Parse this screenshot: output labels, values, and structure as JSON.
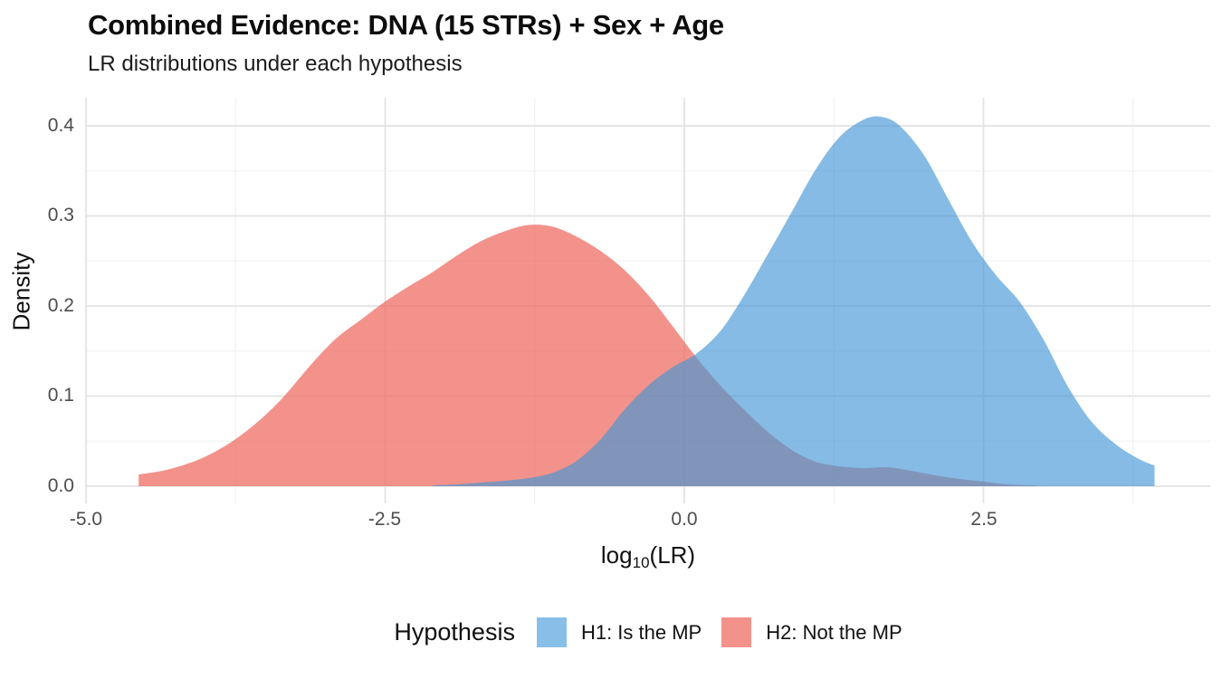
{
  "header": {
    "title": "Combined Evidence: DNA (15 STRs) + Sex + Age",
    "subtitle": "LR distributions under each hypothesis"
  },
  "axes": {
    "x": {
      "title_prefix": "log",
      "title_sub": "10",
      "title_suffix": "(LR)",
      "ticks": [
        {
          "v": -5.0,
          "label": "-5.0"
        },
        {
          "v": -2.5,
          "label": "-2.5"
        },
        {
          "v": 0.0,
          "label": "0.0"
        },
        {
          "v": 2.5,
          "label": "2.5"
        }
      ],
      "minor": [
        -3.75,
        -1.25,
        1.25,
        3.75
      ]
    },
    "y": {
      "title": "Density",
      "ticks": [
        {
          "v": 0.0,
          "label": "0.0"
        },
        {
          "v": 0.1,
          "label": "0.1"
        },
        {
          "v": 0.2,
          "label": "0.2"
        },
        {
          "v": 0.3,
          "label": "0.3"
        },
        {
          "v": 0.4,
          "label": "0.4"
        }
      ],
      "minor": [
        0.05,
        0.15,
        0.25,
        0.35
      ]
    }
  },
  "legend": {
    "title": "Hypothesis",
    "items": [
      {
        "label": "H1: Is the MP",
        "color": "#88BFE8"
      },
      {
        "label": "H2: Not the MP",
        "color": "#F2928B"
      }
    ]
  },
  "colors": {
    "h1_fill": "rgba(68,151,214,0.65)",
    "h2_fill": "rgba(238,110,100,0.75)",
    "grid_major": "#e3e3e3",
    "grid_minor": "#f0f0f0",
    "tick_text": "#4d4d4d",
    "text": "#111111"
  },
  "chart_data": {
    "type": "area",
    "title": "Combined Evidence: DNA (15 STRs) + Sex + Age",
    "subtitle": "LR distributions under each hypothesis",
    "xlabel": "log10(LR)",
    "ylabel": "Density",
    "xlim": [
      -5.05,
      4.4
    ],
    "ylim": [
      0,
      0.43
    ],
    "x_ticks": [
      -5.0,
      -2.5,
      0.0,
      2.5
    ],
    "y_ticks": [
      0.0,
      0.1,
      0.2,
      0.3,
      0.4
    ],
    "grid": true,
    "legend_position": "bottom",
    "legend_title": "Hypothesis",
    "series": [
      {
        "name": "H1: Is the MP",
        "color": "#88BFE8",
        "points": [
          [
            -2.1,
            0.001
          ],
          [
            -1.9,
            0.002
          ],
          [
            -1.7,
            0.004
          ],
          [
            -1.5,
            0.006
          ],
          [
            -1.3,
            0.009
          ],
          [
            -1.1,
            0.015
          ],
          [
            -0.9,
            0.028
          ],
          [
            -0.7,
            0.052
          ],
          [
            -0.5,
            0.085
          ],
          [
            -0.3,
            0.112
          ],
          [
            -0.1,
            0.132
          ],
          [
            0.1,
            0.147
          ],
          [
            0.3,
            0.172
          ],
          [
            0.5,
            0.212
          ],
          [
            0.7,
            0.258
          ],
          [
            0.9,
            0.305
          ],
          [
            1.1,
            0.352
          ],
          [
            1.3,
            0.388
          ],
          [
            1.5,
            0.407
          ],
          [
            1.65,
            0.41
          ],
          [
            1.8,
            0.4
          ],
          [
            2.0,
            0.368
          ],
          [
            2.2,
            0.32
          ],
          [
            2.4,
            0.272
          ],
          [
            2.6,
            0.235
          ],
          [
            2.8,
            0.205
          ],
          [
            3.0,
            0.163
          ],
          [
            3.2,
            0.112
          ],
          [
            3.4,
            0.072
          ],
          [
            3.6,
            0.047
          ],
          [
            3.8,
            0.03
          ],
          [
            3.93,
            0.023
          ]
        ]
      },
      {
        "name": "H2: Not the MP",
        "color": "#F2928B",
        "points": [
          [
            -4.56,
            0.013
          ],
          [
            -4.3,
            0.019
          ],
          [
            -4.0,
            0.033
          ],
          [
            -3.7,
            0.057
          ],
          [
            -3.4,
            0.092
          ],
          [
            -3.1,
            0.138
          ],
          [
            -2.9,
            0.165
          ],
          [
            -2.7,
            0.185
          ],
          [
            -2.5,
            0.205
          ],
          [
            -2.3,
            0.222
          ],
          [
            -2.1,
            0.238
          ],
          [
            -1.9,
            0.256
          ],
          [
            -1.7,
            0.272
          ],
          [
            -1.5,
            0.283
          ],
          [
            -1.3,
            0.29
          ],
          [
            -1.1,
            0.288
          ],
          [
            -0.9,
            0.277
          ],
          [
            -0.7,
            0.261
          ],
          [
            -0.5,
            0.24
          ],
          [
            -0.3,
            0.212
          ],
          [
            -0.1,
            0.178
          ],
          [
            0.1,
            0.143
          ],
          [
            0.3,
            0.112
          ],
          [
            0.5,
            0.085
          ],
          [
            0.7,
            0.06
          ],
          [
            0.9,
            0.04
          ],
          [
            1.1,
            0.027
          ],
          [
            1.3,
            0.022
          ],
          [
            1.5,
            0.02
          ],
          [
            1.7,
            0.021
          ],
          [
            1.9,
            0.017
          ],
          [
            2.1,
            0.012
          ],
          [
            2.3,
            0.008
          ],
          [
            2.5,
            0.005
          ],
          [
            2.7,
            0.002
          ],
          [
            2.9,
            0.001
          ],
          [
            3.0,
            0.0
          ]
        ]
      }
    ]
  }
}
